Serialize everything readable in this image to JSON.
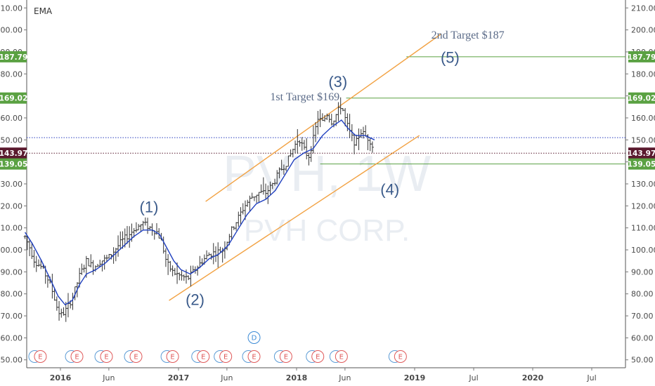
{
  "chart_data": {
    "type": "ohlc",
    "indicator": "EMA",
    "watermark": {
      "symbol": "PVH, 1W",
      "name": "PVH CORP."
    },
    "y_axis": {
      "ylim": [
        48,
        212
      ],
      "ticks": [
        "50.00",
        "60.00",
        "70.00",
        "80.00",
        "90.00",
        "100.00",
        "110.00",
        "120.00",
        "130.00",
        "140.00",
        "150.00",
        "160.00",
        "170.00",
        "180.00",
        "190.00",
        "200.00",
        "210.00"
      ]
    },
    "x_axis": {
      "ticks": [
        {
          "label": "2016",
          "t": 0
        },
        {
          "label": "Jun",
          "t": 0.41
        },
        {
          "label": "2017",
          "t": 1
        },
        {
          "label": "Jun",
          "t": 1.41
        },
        {
          "label": "2018",
          "t": 2
        },
        {
          "label": "Jun",
          "t": 2.41
        },
        {
          "label": "2019",
          "t": 3
        },
        {
          "label": "Jul",
          "t": 3.5
        },
        {
          "label": "2020",
          "t": 4
        },
        {
          "label": "Jul",
          "t": 4.5
        }
      ],
      "bold": [
        "2016",
        "2017",
        "2018",
        "2019",
        "2020"
      ]
    },
    "price_labels": [
      {
        "value": 187.79,
        "text": "187.79",
        "color": "#5aa142"
      },
      {
        "value": 169.02,
        "text": "169.02",
        "color": "#5aa142"
      },
      {
        "value": 143.97,
        "text": "143.97",
        "color": "#5a1a2e"
      },
      {
        "value": 139.05,
        "text": "139.05",
        "color": "#5aa142"
      }
    ],
    "horizontal_lines": [
      {
        "value": 187.79,
        "from_t": 2.93,
        "color": "#5aa142",
        "style": "solid"
      },
      {
        "value": 169.02,
        "from_t": 2.42,
        "color": "#5aa142",
        "style": "solid"
      },
      {
        "value": 139.05,
        "from_t": 2.2,
        "color": "#5aa142",
        "style": "solid"
      },
      {
        "value": 151.0,
        "from_t": -0.3,
        "color": "#2a3fbf",
        "style": "dotted"
      },
      {
        "value": 143.97,
        "from_t": -0.3,
        "color": "#5a1a2e",
        "style": "dotted"
      }
    ],
    "channel": {
      "color": "#f2a243",
      "upper": [
        {
          "t": 1.23,
          "v": 122
        },
        {
          "t": 3.22,
          "v": 198
        }
      ],
      "lower": [
        {
          "t": 0.92,
          "v": 77
        },
        {
          "t": 3.04,
          "v": 152
        }
      ]
    },
    "annotations": [
      {
        "text": "1st Target  $169",
        "t": 2.07,
        "v": 168,
        "kind": "target"
      },
      {
        "text": "2nd Target  $187",
        "t": 3.45,
        "v": 196,
        "kind": "target"
      },
      {
        "text": "(1)",
        "t": 0.75,
        "v": 117,
        "kind": "wave"
      },
      {
        "text": "(2)",
        "t": 1.14,
        "v": 75,
        "kind": "wave"
      },
      {
        "text": "(3)",
        "t": 2.35,
        "v": 174,
        "kind": "wave"
      },
      {
        "text": "(4)",
        "t": 2.79,
        "v": 125,
        "kind": "wave"
      },
      {
        "text": "(5)",
        "t": 3.3,
        "v": 185,
        "kind": "wave"
      }
    ],
    "price_path": [
      {
        "t": -0.3,
        "v": 106
      },
      {
        "t": -0.26,
        "v": 101
      },
      {
        "t": -0.22,
        "v": 95
      },
      {
        "t": -0.16,
        "v": 92
      },
      {
        "t": -0.1,
        "v": 86
      },
      {
        "t": -0.06,
        "v": 80
      },
      {
        "t": -0.03,
        "v": 74
      },
      {
        "t": 0.0,
        "v": 70
      },
      {
        "t": 0.04,
        "v": 72
      },
      {
        "t": 0.1,
        "v": 78
      },
      {
        "t": 0.16,
        "v": 88
      },
      {
        "t": 0.22,
        "v": 95
      },
      {
        "t": 0.28,
        "v": 92
      },
      {
        "t": 0.34,
        "v": 95
      },
      {
        "t": 0.4,
        "v": 96
      },
      {
        "t": 0.46,
        "v": 100
      },
      {
        "t": 0.52,
        "v": 104
      },
      {
        "t": 0.58,
        "v": 107
      },
      {
        "t": 0.64,
        "v": 110
      },
      {
        "t": 0.7,
        "v": 112
      },
      {
        "t": 0.76,
        "v": 110
      },
      {
        "t": 0.82,
        "v": 108
      },
      {
        "t": 0.86,
        "v": 103
      },
      {
        "t": 0.9,
        "v": 94
      },
      {
        "t": 0.95,
        "v": 90
      },
      {
        "t": 1.02,
        "v": 88
      },
      {
        "t": 1.08,
        "v": 87
      },
      {
        "t": 1.14,
        "v": 91
      },
      {
        "t": 1.2,
        "v": 95
      },
      {
        "t": 1.26,
        "v": 98
      },
      {
        "t": 1.32,
        "v": 99
      },
      {
        "t": 1.38,
        "v": 100
      },
      {
        "t": 1.44,
        "v": 108
      },
      {
        "t": 1.5,
        "v": 114
      },
      {
        "t": 1.56,
        "v": 120
      },
      {
        "t": 1.62,
        "v": 124
      },
      {
        "t": 1.68,
        "v": 126
      },
      {
        "t": 1.74,
        "v": 126
      },
      {
        "t": 1.8,
        "v": 130
      },
      {
        "t": 1.86,
        "v": 136
      },
      {
        "t": 1.92,
        "v": 140
      },
      {
        "t": 1.98,
        "v": 147
      },
      {
        "t": 2.02,
        "v": 151
      },
      {
        "t": 2.06,
        "v": 146
      },
      {
        "t": 2.1,
        "v": 142
      },
      {
        "t": 2.14,
        "v": 150
      },
      {
        "t": 2.18,
        "v": 160
      },
      {
        "t": 2.22,
        "v": 158
      },
      {
        "t": 2.26,
        "v": 162
      },
      {
        "t": 2.3,
        "v": 158
      },
      {
        "t": 2.34,
        "v": 162
      },
      {
        "t": 2.38,
        "v": 166
      },
      {
        "t": 2.42,
        "v": 158
      },
      {
        "t": 2.46,
        "v": 152
      },
      {
        "t": 2.5,
        "v": 148
      },
      {
        "t": 2.54,
        "v": 154
      },
      {
        "t": 2.58,
        "v": 152
      },
      {
        "t": 2.62,
        "v": 150
      },
      {
        "t": 2.66,
        "v": 145
      }
    ],
    "ema": [
      {
        "t": -0.3,
        "v": 108
      },
      {
        "t": -0.24,
        "v": 103
      },
      {
        "t": -0.16,
        "v": 95
      },
      {
        "t": -0.08,
        "v": 86
      },
      {
        "t": -0.02,
        "v": 79
      },
      {
        "t": 0.04,
        "v": 75
      },
      {
        "t": 0.1,
        "v": 77
      },
      {
        "t": 0.16,
        "v": 84
      },
      {
        "t": 0.22,
        "v": 89
      },
      {
        "t": 0.3,
        "v": 91
      },
      {
        "t": 0.38,
        "v": 94
      },
      {
        "t": 0.46,
        "v": 98
      },
      {
        "t": 0.54,
        "v": 102
      },
      {
        "t": 0.62,
        "v": 106
      },
      {
        "t": 0.7,
        "v": 109
      },
      {
        "t": 0.78,
        "v": 109
      },
      {
        "t": 0.84,
        "v": 107
      },
      {
        "t": 0.9,
        "v": 101
      },
      {
        "t": 0.96,
        "v": 95
      },
      {
        "t": 1.02,
        "v": 91
      },
      {
        "t": 1.1,
        "v": 89
      },
      {
        "t": 1.18,
        "v": 92
      },
      {
        "t": 1.26,
        "v": 96
      },
      {
        "t": 1.34,
        "v": 98
      },
      {
        "t": 1.42,
        "v": 102
      },
      {
        "t": 1.5,
        "v": 109
      },
      {
        "t": 1.58,
        "v": 116
      },
      {
        "t": 1.66,
        "v": 121
      },
      {
        "t": 1.74,
        "v": 123
      },
      {
        "t": 1.82,
        "v": 127
      },
      {
        "t": 1.9,
        "v": 134
      },
      {
        "t": 1.98,
        "v": 141
      },
      {
        "t": 2.06,
        "v": 144
      },
      {
        "t": 2.14,
        "v": 146
      },
      {
        "t": 2.22,
        "v": 152
      },
      {
        "t": 2.3,
        "v": 156
      },
      {
        "t": 2.38,
        "v": 159
      },
      {
        "t": 2.44,
        "v": 155
      },
      {
        "t": 2.5,
        "v": 152
      },
      {
        "t": 2.58,
        "v": 152
      },
      {
        "t": 2.66,
        "v": 150
      }
    ],
    "events": [
      {
        "text": "E",
        "t": -0.17,
        "kind": "E"
      },
      {
        "text": "E",
        "t": 0.14,
        "kind": "E"
      },
      {
        "text": "E",
        "t": 0.39,
        "kind": "E"
      },
      {
        "text": "E",
        "t": 0.64,
        "kind": "E"
      },
      {
        "text": "E",
        "t": 0.95,
        "kind": "E"
      },
      {
        "text": "E",
        "t": 1.21,
        "kind": "E"
      },
      {
        "text": "E",
        "t": 1.4,
        "kind": "E"
      },
      {
        "text": "E",
        "t": 1.64,
        "kind": "E"
      },
      {
        "text": "E",
        "t": 1.91,
        "kind": "E"
      },
      {
        "text": "E",
        "t": 2.18,
        "kind": "E"
      },
      {
        "text": "E",
        "t": 2.38,
        "kind": "E"
      },
      {
        "text": "E",
        "t": 2.88,
        "kind": "E"
      },
      {
        "text": "D",
        "t": 1.64,
        "kind": "D",
        "raised": true
      }
    ]
  }
}
